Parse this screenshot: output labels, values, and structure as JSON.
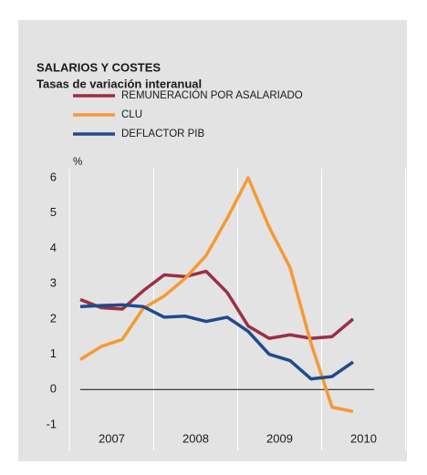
{
  "chart_data": {
    "type": "line",
    "title": "SALARIOS Y COSTES",
    "subtitle": "Tasas de variación interanual",
    "y_unit": "%",
    "categories": [
      null,
      null,
      null,
      null,
      null,
      null,
      null,
      null,
      null,
      null,
      null,
      null,
      null,
      null
    ],
    "year_labels": [
      "2007",
      "2008",
      "2009",
      "2010"
    ],
    "series": [
      {
        "name": "REMUNERACIÓN POR ASALARIADO",
        "color": "#9b2f45",
        "values": [
          2.55,
          2.32,
          2.28,
          2.8,
          3.25,
          3.2,
          3.35,
          2.75,
          1.8,
          1.45,
          1.55,
          1.45,
          1.5,
          2.0
        ]
      },
      {
        "name": "CLU",
        "color": "#f59a35",
        "values": [
          0.85,
          1.22,
          1.42,
          2.3,
          2.65,
          3.15,
          3.8,
          4.85,
          6.0,
          4.6,
          3.45,
          1.3,
          -0.5,
          -0.62
        ]
      },
      {
        "name": "DEFLACTOR PIB",
        "color": "#1f4a8c",
        "values": [
          2.35,
          2.38,
          2.4,
          2.35,
          2.05,
          2.08,
          1.93,
          2.05,
          1.65,
          1.0,
          0.82,
          0.3,
          0.37,
          0.78
        ]
      }
    ],
    "ylim": [
      -1,
      6
    ],
    "yticks": [
      -1,
      0,
      1,
      2,
      3,
      4,
      5,
      6
    ],
    "grid": false
  }
}
